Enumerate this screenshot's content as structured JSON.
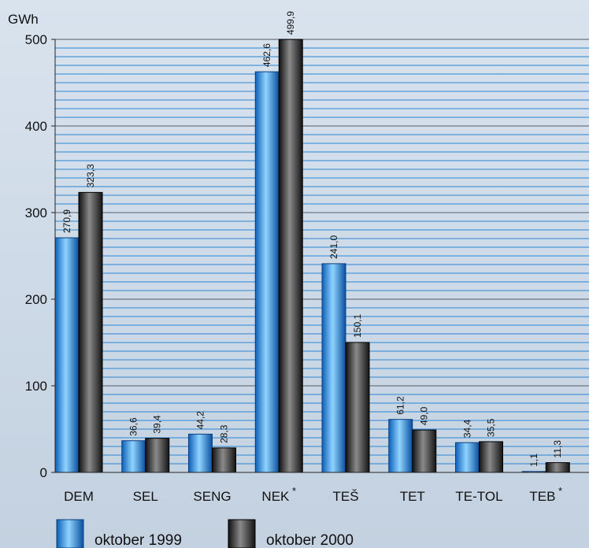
{
  "chart_data": {
    "type": "bar",
    "ylabel": "GWh",
    "ylim": [
      0,
      500
    ],
    "yticks": [
      0,
      100,
      200,
      300,
      400,
      500
    ],
    "grid": true,
    "legend_position": "bottom-left",
    "categories": [
      {
        "label": "DEM",
        "mark": ""
      },
      {
        "label": "SEL",
        "mark": ""
      },
      {
        "label": "SENG",
        "mark": ""
      },
      {
        "label": "NEK",
        "mark": "*"
      },
      {
        "label": "TEŠ",
        "mark": ""
      },
      {
        "label": "TET",
        "mark": ""
      },
      {
        "label": "TE-TOL",
        "mark": ""
      },
      {
        "label": "TEB",
        "mark": "*"
      }
    ],
    "series": [
      {
        "name": "oktober 1999",
        "color": "#1f8fe0",
        "values": [
          270.9,
          36.6,
          44.2,
          462.6,
          241.0,
          61.2,
          34.4,
          1.1
        ],
        "labels": [
          "270,9",
          "36,6",
          "44,2",
          "462,6",
          "241,0",
          "61,2",
          "34,4",
          "1,1"
        ]
      },
      {
        "name": "oktober 2000",
        "color": "#2a2a2a",
        "values": [
          323.3,
          39.4,
          28.3,
          499.9,
          150.1,
          49.0,
          35.5,
          11.3
        ],
        "labels": [
          "323,3",
          "39,4",
          "28,3",
          "499,9",
          "150,1",
          "49,0",
          "35,5",
          "11,3"
        ]
      }
    ]
  }
}
